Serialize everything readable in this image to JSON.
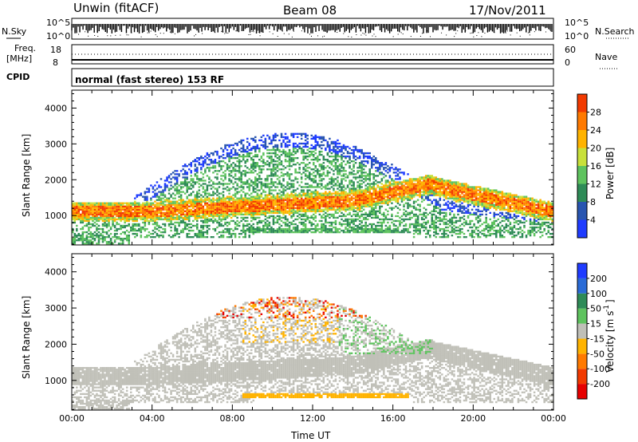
{
  "header": {
    "station": "Unwin (fitACF)",
    "beam": "Beam 08",
    "date": "17/Nov/2011"
  },
  "top_panels": {
    "nsky_label": "N.Sky",
    "nsearch_label": "N.Search",
    "freq_label_1": "Freq.",
    "freq_label_2": "[MHz]",
    "nave_label": "Nave",
    "cpid_label": "CPID",
    "cpid_text": "normal (fast stereo) 153 RF",
    "noise_left_ticks": [
      "10^5",
      "10^0"
    ],
    "noise_right_ticks": [
      "10^5",
      "10^0"
    ],
    "freq_ticks": [
      "18",
      "8"
    ],
    "nave_ticks": [
      "60",
      "0"
    ]
  },
  "chart_data": [
    {
      "type": "heatmap",
      "panel": "power",
      "xlabel": "",
      "ylabel": "Slant Range [km]",
      "xlim": [
        "00:00",
        "24:00"
      ],
      "ylim": [
        180,
        4500
      ],
      "yticks": [
        "1000",
        "2000",
        "3000",
        "4000"
      ],
      "colorbar_label": "Power [dB]",
      "colorbar_ticks": [
        "4",
        "8",
        "12",
        "16",
        "20",
        "24",
        "28"
      ],
      "colorbar_colors": [
        "#1f3cff",
        "#2855b0",
        "#2e8b57",
        "#5ec35e",
        "#c8e03a",
        "#ffb300",
        "#ff7a00",
        "#f23a00"
      ]
    },
    {
      "type": "heatmap",
      "panel": "velocity",
      "xlabel": "Time UT",
      "ylabel": "Slant Range [km]",
      "xlim": [
        "00:00",
        "24:00"
      ],
      "ylim": [
        180,
        4500
      ],
      "yticks": [
        "1000",
        "2000",
        "3000",
        "4000"
      ],
      "xticks": [
        "00:00",
        "04:00",
        "08:00",
        "12:00",
        "16:00",
        "20:00",
        "00:00"
      ],
      "colorbar_label": "Velocity [m s^-1]",
      "colorbar_ticks": [
        "200",
        "100",
        "50",
        "15",
        "-15",
        "-50",
        "-100",
        "-200"
      ],
      "colorbar_colors": [
        "#1f3cff",
        "#2a6bd6",
        "#2e8b57",
        "#5ec35e",
        "#c0c0b8",
        "#ffb300",
        "#ff7a00",
        "#f23a00",
        "#e60000"
      ]
    }
  ]
}
